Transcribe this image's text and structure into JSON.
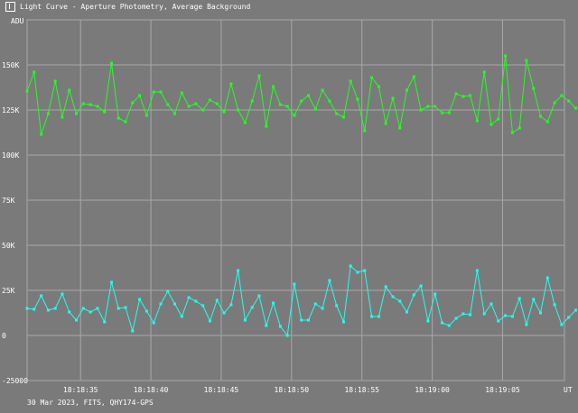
{
  "window": {
    "title": "Light Curve - Aperture Photometry, Average Background"
  },
  "footer": "30 Mar 2023, FITS, QHY174-GPS",
  "colors": {
    "background": "#7a7a7a",
    "grid": "#a8a8a8",
    "target": "#22ff22",
    "comparison": "#22ffee",
    "text": "#ffffff"
  },
  "chart_data": {
    "type": "line",
    "title": "Light Curve - Aperture Photometry, Average Background",
    "ylabel": "ADU",
    "xlabel": "UT",
    "ylim": [
      -25000,
      175000
    ],
    "xlim": [
      "18:18:31.2",
      "18:19:09.4"
    ],
    "grid": true,
    "y_ticks": [
      {
        "value": -25000,
        "label": "-25000"
      },
      {
        "value": 0,
        "label": "0"
      },
      {
        "value": 25000,
        "label": "25K"
      },
      {
        "value": 50000,
        "label": "50K"
      },
      {
        "value": 75000,
        "label": "75K"
      },
      {
        "value": 100000,
        "label": "100K"
      },
      {
        "value": 125000,
        "label": "125K"
      },
      {
        "value": 150000,
        "label": "150K"
      }
    ],
    "x_ticks": [
      {
        "value": "18:18:35",
        "label": "18:18:35"
      },
      {
        "value": "18:18:40",
        "label": "18:18:40"
      },
      {
        "value": "18:18:45",
        "label": "18:18:45"
      },
      {
        "value": "18:18:50",
        "label": "18:18:50"
      },
      {
        "value": "18:18:55",
        "label": "18:18:55"
      },
      {
        "value": "18:19:00",
        "label": "18:19:00"
      },
      {
        "value": "18:19:05",
        "label": "18:19:05"
      }
    ],
    "x_start": "18:18:31.2",
    "x_step_seconds": 0.5,
    "series": [
      {
        "color": "#22ff22",
        "values": [
          135500,
          146000,
          111500,
          123000,
          141000,
          121000,
          136000,
          123000,
          128500,
          128000,
          127000,
          124000,
          151000,
          120500,
          118500,
          129000,
          133000,
          122000,
          135000,
          135000,
          128000,
          123000,
          134500,
          127000,
          128500,
          125000,
          130500,
          128500,
          124000,
          139500,
          125000,
          118000,
          130000,
          144000,
          116000,
          138000,
          128000,
          127000,
          122000,
          130000,
          133000,
          125500,
          136000,
          130000,
          123000,
          121000,
          141000,
          131000,
          113500,
          143000,
          138000,
          117500,
          131500,
          115000,
          136000,
          143500,
          125000,
          127000,
          127000,
          123500,
          123500,
          134000,
          132500,
          133000,
          119000,
          146000,
          117000,
          120000,
          155000,
          112500,
          115000,
          152500,
          137000,
          121500,
          118500,
          129000,
          133000,
          130000,
          126000
        ]
      },
      {
        "color": "#22ffee",
        "values": [
          15000,
          14500,
          22000,
          14000,
          15000,
          23000,
          13000,
          8500,
          15000,
          13000,
          15000,
          7500,
          29500,
          15000,
          15500,
          2500,
          20000,
          13500,
          7000,
          17500,
          24500,
          17500,
          10500,
          21000,
          19000,
          16500,
          8000,
          19500,
          12500,
          17000,
          36000,
          8500,
          15500,
          22000,
          5500,
          18000,
          5000,
          0,
          28500,
          8500,
          8500,
          17500,
          15000,
          30500,
          16500,
          7500,
          38500,
          35000,
          36000,
          10500,
          10500,
          27000,
          21500,
          19000,
          13000,
          22500,
          27500,
          8000,
          23000,
          7000,
          5500,
          9500,
          12000,
          11500,
          36000,
          12000,
          17500,
          8000,
          11000,
          10500,
          20500,
          6000,
          20000,
          12500,
          32000,
          17000,
          6000,
          10000,
          14000
        ]
      }
    ]
  }
}
